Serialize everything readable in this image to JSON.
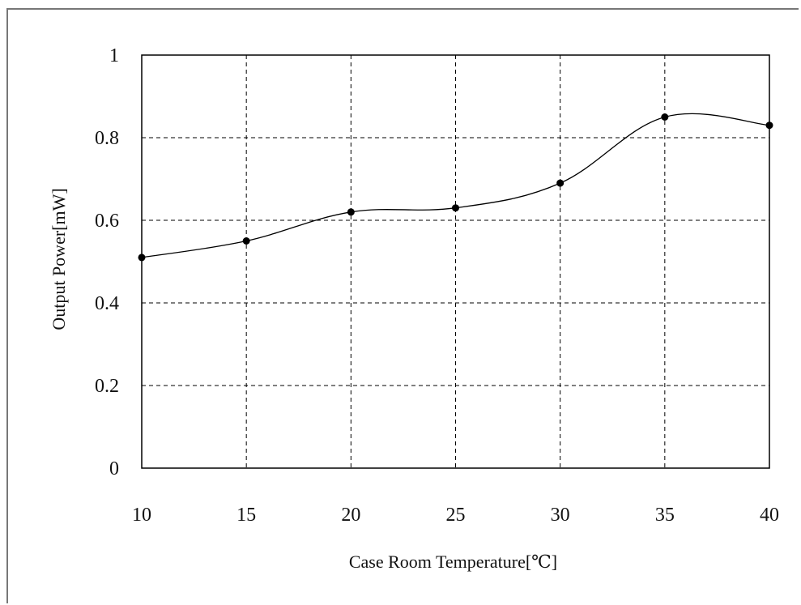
{
  "chart_data": {
    "type": "line",
    "title": "",
    "xlabel": "Case Room Temperature[℃]",
    "ylabel": "Output Power[mW]",
    "xlim": [
      10,
      40
    ],
    "ylim": [
      0,
      1
    ],
    "xticks": [
      "10",
      "15",
      "20",
      "25",
      "30",
      "35",
      "40"
    ],
    "yticks": [
      "0",
      "0.2",
      "0.4",
      "0.6",
      "0.8",
      "1"
    ],
    "grid": true,
    "legend": "none",
    "series": [
      {
        "x": [
          10,
          15,
          20,
          25,
          30,
          35,
          40
        ],
        "values": [
          0.51,
          0.55,
          0.62,
          0.63,
          0.69,
          0.85,
          0.83
        ]
      }
    ]
  }
}
